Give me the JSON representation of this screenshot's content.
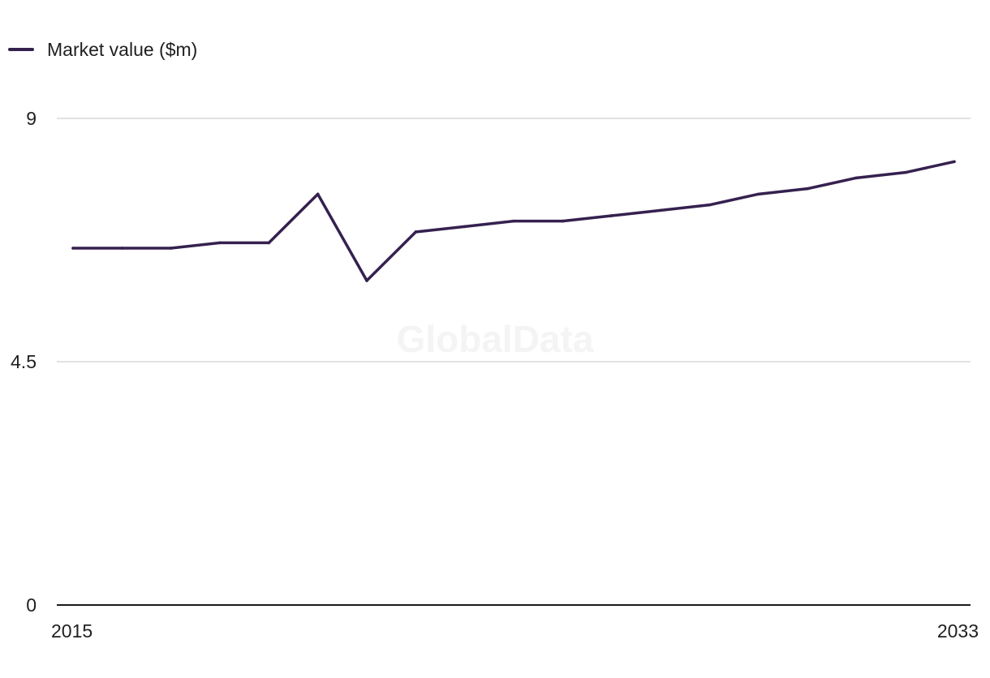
{
  "chart_data": {
    "type": "line",
    "series": [
      {
        "name": "Market value ($m)",
        "color": "#35214f",
        "x": [
          2015,
          2016,
          2017,
          2018,
          2019,
          2020,
          2021,
          2022,
          2023,
          2024,
          2025,
          2026,
          2027,
          2028,
          2029,
          2030,
          2031,
          2032,
          2033
        ],
        "values": [
          6.6,
          6.6,
          6.6,
          6.7,
          6.7,
          7.6,
          6.0,
          6.9,
          7.0,
          7.1,
          7.1,
          7.2,
          7.3,
          7.4,
          7.6,
          7.7,
          7.9,
          8.0,
          8.2
        ]
      }
    ],
    "x_tick_labels": [
      "2015",
      "2033"
    ],
    "y_ticks": [
      0,
      4.5,
      9
    ],
    "y_tick_labels": [
      "0",
      "4.5",
      "9"
    ],
    "ylim": [
      0,
      9
    ],
    "xlim": [
      2015,
      2033
    ],
    "grid": "horizontal",
    "legend_position": "top-left",
    "gridline_color": "#d9d9d9",
    "axis_color": "#1a1a1a",
    "watermark": "GlobalData"
  }
}
